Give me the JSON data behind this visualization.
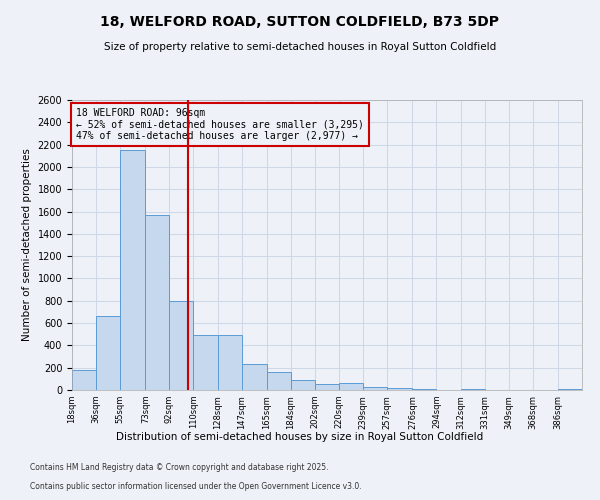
{
  "title": "18, WELFORD ROAD, SUTTON COLDFIELD, B73 5DP",
  "subtitle": "Size of property relative to semi-detached houses in Royal Sutton Coldfield",
  "xlabel": "Distribution of semi-detached houses by size in Royal Sutton Coldfield",
  "ylabel": "Number of semi-detached properties",
  "footnote1": "Contains HM Land Registry data © Crown copyright and database right 2025.",
  "footnote2": "Contains public sector information licensed under the Open Government Licence v3.0.",
  "annotation_title": "18 WELFORD ROAD: 96sqm",
  "annotation_line1": "← 52% of semi-detached houses are smaller (3,295)",
  "annotation_line2": "47% of semi-detached houses are larger (2,977) →",
  "property_size": 96,
  "bar_color": "#c5d8ed",
  "bar_edge_color": "#5b9bd5",
  "vline_color": "#cc0000",
  "annotation_box_color": "#cc0000",
  "grid_color": "#d0d8e8",
  "background_color": "#eef2f8",
  "categories": [
    "18sqm",
    "36sqm",
    "55sqm",
    "73sqm",
    "92sqm",
    "110sqm",
    "128sqm",
    "147sqm",
    "165sqm",
    "184sqm",
    "202sqm",
    "220sqm",
    "239sqm",
    "257sqm",
    "276sqm",
    "294sqm",
    "312sqm",
    "331sqm",
    "349sqm",
    "368sqm",
    "386sqm"
  ],
  "bin_edges": [
    9,
    27,
    45,
    64,
    82,
    100,
    118,
    136,
    155,
    173,
    191,
    209,
    227,
    245,
    264,
    282,
    300,
    318,
    336,
    354,
    373,
    391
  ],
  "values": [
    180,
    660,
    2150,
    1570,
    800,
    490,
    490,
    235,
    160,
    90,
    55,
    65,
    25,
    15,
    5,
    2,
    5,
    1,
    0,
    0,
    5
  ],
  "ylim": [
    0,
    2600
  ],
  "yticks": [
    0,
    200,
    400,
    600,
    800,
    1000,
    1200,
    1400,
    1600,
    1800,
    2000,
    2200,
    2400,
    2600
  ]
}
